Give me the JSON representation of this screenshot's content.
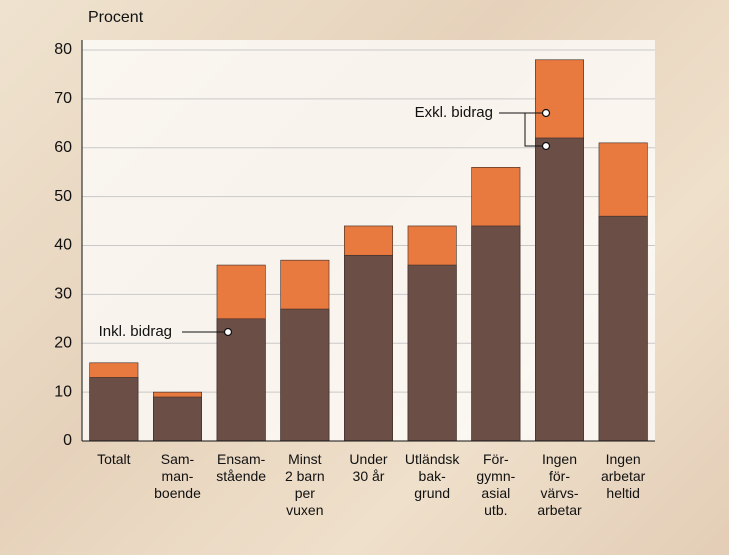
{
  "chart_data": {
    "type": "bar",
    "y_label": "Procent",
    "categories": [
      "Totalt",
      "Sam-\nman-\nboende",
      "Ensam-\nstående",
      "Minst\n2 barn\nper\nvuxen",
      "Under\n30 år",
      "Utländsk\nbak-\ngrund",
      "För-\ngymn-\nasial\nutb.",
      "Ingen\nför-\nvärvs-\narbetar",
      "Ingen\narbetar\nheltid"
    ],
    "series": [
      {
        "name": "Exkl. bidrag",
        "color": "#e8793f",
        "values": [
          16,
          10,
          36,
          37,
          44,
          44,
          56,
          78,
          61
        ]
      },
      {
        "name": "Inkl. bidrag",
        "color": "#6b4f47",
        "values": [
          13,
          9,
          25,
          27,
          38,
          36,
          44,
          62,
          46
        ]
      }
    ],
    "ylim": [
      0,
      80
    ],
    "yticks": [
      0,
      10,
      20,
      30,
      40,
      50,
      60,
      70,
      80
    ],
    "grid": true
  }
}
